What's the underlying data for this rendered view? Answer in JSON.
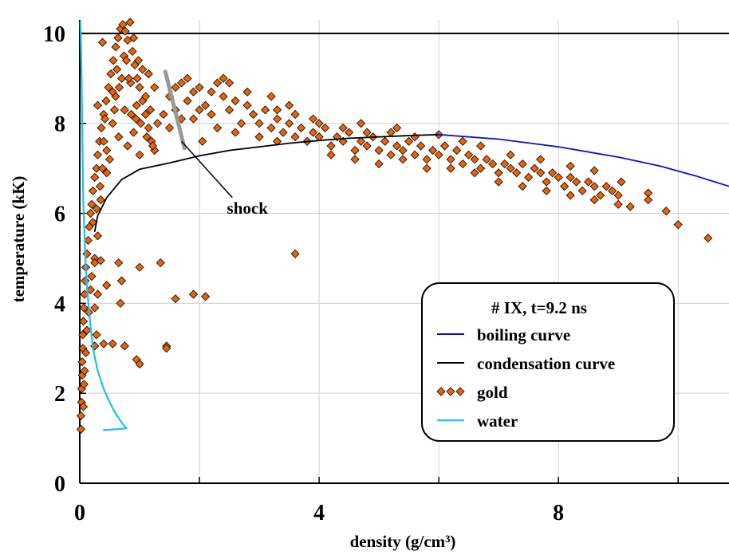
{
  "chart_data": {
    "type": "scatter",
    "title": "",
    "xlabel": "density (g/cm³)",
    "ylabel": "temperature (kK)",
    "xlim": [
      0,
      10.85
    ],
    "ylim": [
      0,
      10.3
    ],
    "x_ticks": [
      "0",
      "4",
      "8"
    ],
    "y_ticks": [
      "0",
      "2",
      "4",
      "6",
      "8",
      "10"
    ],
    "x_tick_values": [
      0,
      4,
      8
    ],
    "y_tick_values": [
      0,
      2,
      4,
      6,
      8,
      10
    ],
    "x_gridlines": [
      2,
      4,
      6,
      8,
      10
    ],
    "y_gridlines": [
      2,
      4,
      6,
      8,
      10
    ],
    "grid": true,
    "legend": {
      "title": "# IX, t=9.2 ns",
      "position": "lower-right",
      "entries": [
        "boiling curve",
        "condensation curve",
        "gold",
        "water"
      ]
    },
    "annotations": [
      {
        "text": "shock",
        "x": 2.5,
        "y": 6.1
      }
    ],
    "series": [
      {
        "name": "boiling curve",
        "kind": "line",
        "color": "#1010c0",
        "points": [
          [
            6.0,
            7.75
          ],
          [
            7.0,
            7.65
          ],
          [
            8.0,
            7.48
          ],
          [
            9.0,
            7.25
          ],
          [
            9.7,
            7.05
          ],
          [
            10.3,
            6.83
          ],
          [
            10.85,
            6.6
          ]
        ]
      },
      {
        "name": "condensation curve",
        "kind": "line",
        "color": "#000000",
        "points": [
          [
            0.25,
            5.6
          ],
          [
            0.3,
            5.95
          ],
          [
            0.45,
            6.35
          ],
          [
            0.7,
            6.75
          ],
          [
            1.0,
            6.98
          ],
          [
            1.5,
            7.12
          ],
          [
            2.0,
            7.28
          ],
          [
            2.5,
            7.4
          ],
          [
            3.0,
            7.48
          ],
          [
            3.5,
            7.56
          ],
          [
            4.0,
            7.62
          ],
          [
            4.5,
            7.67
          ],
          [
            5.0,
            7.7
          ],
          [
            5.5,
            7.73
          ],
          [
            6.0,
            7.75
          ]
        ]
      },
      {
        "name": "gold",
        "kind": "scatter",
        "color": "#e8640a",
        "edge_color": "#000000",
        "marker": "diamond",
        "points": [
          [
            0.02,
            1.2
          ],
          [
            0.02,
            1.5
          ],
          [
            0.03,
            1.8
          ],
          [
            0.03,
            2.1
          ],
          [
            0.04,
            2.4
          ],
          [
            0.04,
            2.7
          ],
          [
            0.05,
            3.0
          ],
          [
            0.05,
            3.3
          ],
          [
            0.06,
            3.6
          ],
          [
            0.07,
            3.9
          ],
          [
            0.08,
            4.2
          ],
          [
            0.09,
            4.5
          ],
          [
            0.1,
            4.8
          ],
          [
            0.12,
            5.1
          ],
          [
            0.14,
            5.4
          ],
          [
            0.16,
            5.7
          ],
          [
            0.18,
            6.0
          ],
          [
            0.2,
            6.2
          ],
          [
            0.22,
            6.5
          ],
          [
            0.25,
            6.8
          ],
          [
            0.28,
            7.0
          ],
          [
            0.3,
            7.3
          ],
          [
            0.33,
            7.6
          ],
          [
            0.36,
            7.9
          ],
          [
            0.4,
            8.2
          ],
          [
            0.44,
            8.5
          ],
          [
            0.48,
            8.8
          ],
          [
            0.52,
            9.1
          ],
          [
            0.56,
            9.4
          ],
          [
            0.6,
            9.7
          ],
          [
            0.64,
            9.9
          ],
          [
            0.68,
            10.1
          ],
          [
            0.72,
            10.2
          ],
          [
            0.76,
            10.05
          ],
          [
            0.8,
            9.85
          ],
          [
            0.84,
            10.25
          ],
          [
            0.88,
            9.6
          ],
          [
            0.92,
            9.3
          ],
          [
            0.96,
            9.0
          ],
          [
            1.0,
            8.8
          ],
          [
            1.05,
            8.5
          ],
          [
            1.1,
            8.2
          ],
          [
            1.15,
            7.9
          ],
          [
            1.2,
            7.6
          ],
          [
            1.25,
            7.4
          ],
          [
            0.5,
            7.2
          ],
          [
            0.55,
            8.0
          ],
          [
            0.6,
            8.6
          ],
          [
            0.65,
            7.7
          ],
          [
            0.7,
            9.0
          ],
          [
            0.75,
            8.3
          ],
          [
            0.8,
            7.5
          ],
          [
            0.85,
            8.9
          ],
          [
            0.9,
            7.8
          ],
          [
            0.95,
            8.4
          ],
          [
            1.0,
            7.3
          ],
          [
            1.05,
            9.2
          ],
          [
            1.1,
            8.6
          ],
          [
            0.45,
            6.9
          ],
          [
            0.35,
            6.3
          ],
          [
            0.3,
            5.5
          ],
          [
            0.25,
            5.0
          ],
          [
            0.2,
            4.6
          ],
          [
            0.18,
            4.3
          ],
          [
            0.15,
            3.8
          ],
          [
            0.12,
            3.4
          ],
          [
            0.1,
            2.9
          ],
          [
            0.08,
            2.5
          ],
          [
            0.07,
            2.2
          ],
          [
            0.06,
            1.7
          ],
          [
            0.4,
            7.6
          ],
          [
            0.42,
            8.1
          ],
          [
            0.58,
            8.3
          ],
          [
            0.62,
            9.2
          ],
          [
            0.66,
            8.8
          ],
          [
            0.74,
            9.5
          ],
          [
            0.78,
            9.4
          ],
          [
            0.82,
            9.0
          ],
          [
            0.86,
            8.2
          ],
          [
            0.94,
            8.1
          ],
          [
            1.02,
            8.0
          ],
          [
            1.12,
            7.7
          ],
          [
            1.18,
            8.3
          ],
          [
            1.22,
            7.5
          ],
          [
            0.38,
            7.0
          ],
          [
            0.34,
            6.6
          ],
          [
            0.28,
            6.1
          ],
          [
            0.22,
            5.8
          ],
          [
            0.38,
            9.8
          ],
          [
            0.3,
            8.4
          ],
          [
            0.45,
            7.4
          ],
          [
            0.55,
            8.7
          ],
          [
            0.9,
            9.9
          ],
          [
            0.98,
            9.4
          ],
          [
            1.15,
            9.1
          ],
          [
            1.25,
            8.8
          ],
          [
            0.25,
            4.9
          ],
          [
            0.35,
            4.95
          ],
          [
            0.45,
            4.4
          ],
          [
            0.65,
            4.9
          ],
          [
            0.3,
            4.2
          ],
          [
            0.7,
            4.5
          ],
          [
            0.68,
            4.0
          ],
          [
            1.0,
            4.8
          ],
          [
            1.35,
            4.9
          ],
          [
            0.25,
            3.9
          ],
          [
            0.28,
            3.3
          ],
          [
            0.25,
            3.05
          ],
          [
            0.4,
            3.1
          ],
          [
            0.55,
            3.1
          ],
          [
            0.75,
            3.05
          ],
          [
            0.95,
            2.75
          ],
          [
            1.0,
            2.65
          ],
          [
            1.45,
            3.05
          ],
          [
            1.45,
            3.0
          ],
          [
            1.6,
            4.1
          ],
          [
            1.9,
            4.2
          ],
          [
            2.1,
            4.15
          ],
          [
            3.6,
            5.1
          ],
          [
            1.3,
            8.0
          ],
          [
            1.4,
            8.2
          ],
          [
            1.5,
            8.6
          ],
          [
            1.6,
            8.3
          ],
          [
            1.7,
            8.9
          ],
          [
            1.8,
            8.5
          ],
          [
            1.9,
            8.1
          ],
          [
            2.0,
            8.8
          ],
          [
            2.1,
            8.4
          ],
          [
            2.2,
            8.2
          ],
          [
            2.3,
            8.9
          ],
          [
            2.4,
            8.6
          ],
          [
            2.5,
            8.3
          ],
          [
            2.6,
            8.5
          ],
          [
            2.7,
            8.0
          ],
          [
            2.8,
            8.4
          ],
          [
            2.9,
            8.2
          ],
          [
            3.0,
            8.0
          ],
          [
            3.1,
            8.3
          ],
          [
            3.2,
            7.9
          ],
          [
            3.3,
            8.1
          ],
          [
            3.4,
            7.8
          ],
          [
            3.5,
            8.0
          ],
          [
            3.6,
            7.7
          ],
          [
            3.7,
            7.9
          ],
          [
            3.8,
            7.6
          ],
          [
            3.9,
            7.8
          ],
          [
            4.0,
            7.7
          ],
          [
            4.1,
            7.9
          ],
          [
            4.2,
            7.5
          ],
          [
            4.3,
            7.7
          ],
          [
            4.4,
            7.6
          ],
          [
            4.5,
            7.8
          ],
          [
            4.6,
            7.4
          ],
          [
            4.7,
            7.6
          ],
          [
            4.8,
            7.5
          ],
          [
            4.9,
            7.7
          ],
          [
            5.0,
            7.4
          ],
          [
            5.1,
            7.6
          ],
          [
            5.2,
            7.3
          ],
          [
            5.3,
            7.5
          ],
          [
            5.4,
            7.4
          ],
          [
            5.5,
            7.6
          ],
          [
            5.6,
            7.3
          ],
          [
            5.7,
            7.5
          ],
          [
            5.8,
            7.2
          ],
          [
            5.9,
            7.4
          ],
          [
            6.0,
            7.3
          ],
          [
            6.1,
            7.5
          ],
          [
            6.2,
            7.2
          ],
          [
            6.3,
            7.4
          ],
          [
            6.4,
            7.1
          ],
          [
            6.5,
            7.3
          ],
          [
            6.6,
            7.2
          ],
          [
            6.7,
            7.0
          ],
          [
            6.8,
            7.2
          ],
          [
            6.9,
            7.1
          ],
          [
            7.0,
            6.9
          ],
          [
            7.1,
            7.1
          ],
          [
            7.2,
            7.0
          ],
          [
            7.3,
            6.9
          ],
          [
            7.4,
            7.1
          ],
          [
            7.5,
            6.8
          ],
          [
            7.6,
            7.0
          ],
          [
            7.7,
            6.9
          ],
          [
            7.8,
            6.7
          ],
          [
            7.9,
            6.9
          ],
          [
            8.0,
            6.8
          ],
          [
            8.1,
            6.6
          ],
          [
            8.2,
            6.8
          ],
          [
            8.3,
            6.7
          ],
          [
            8.4,
            6.5
          ],
          [
            8.5,
            6.7
          ],
          [
            8.6,
            6.6
          ],
          [
            8.7,
            6.4
          ],
          [
            8.8,
            6.6
          ],
          [
            8.9,
            6.5
          ],
          [
            9.0,
            6.4
          ],
          [
            1.5,
            7.9
          ],
          [
            1.7,
            8.1
          ],
          [
            1.9,
            8.7
          ],
          [
            2.2,
            8.7
          ],
          [
            2.5,
            8.9
          ],
          [
            2.8,
            8.7
          ],
          [
            3.2,
            8.6
          ],
          [
            3.5,
            8.4
          ],
          [
            2.6,
            7.8
          ],
          [
            2.3,
            7.9
          ],
          [
            2.05,
            7.6
          ],
          [
            3.0,
            7.7
          ],
          [
            3.3,
            7.6
          ],
          [
            3.6,
            8.2
          ],
          [
            4.0,
            8.0
          ],
          [
            4.4,
            7.9
          ],
          [
            4.8,
            7.8
          ],
          [
            5.2,
            7.8
          ],
          [
            5.6,
            7.7
          ],
          [
            4.2,
            7.3
          ],
          [
            4.6,
            7.2
          ],
          [
            5.0,
            7.1
          ],
          [
            5.4,
            7.2
          ],
          [
            5.8,
            7.0
          ],
          [
            6.2,
            7.0
          ],
          [
            6.6,
            6.9
          ],
          [
            7.0,
            6.7
          ],
          [
            7.4,
            6.6
          ],
          [
            7.8,
            6.5
          ],
          [
            8.2,
            6.4
          ],
          [
            8.6,
            6.3
          ],
          [
            9.0,
            6.2
          ],
          [
            9.2,
            6.15
          ],
          [
            9.5,
            6.45
          ],
          [
            9.5,
            6.3
          ],
          [
            9.8,
            6.05
          ],
          [
            10.0,
            5.75
          ],
          [
            10.5,
            5.45
          ],
          [
            6.0,
            7.75
          ],
          [
            6.7,
            7.5
          ],
          [
            7.2,
            7.3
          ],
          [
            7.7,
            7.2
          ],
          [
            8.2,
            7.05
          ],
          [
            8.6,
            6.95
          ],
          [
            9.05,
            6.7
          ],
          [
            6.4,
            7.6
          ],
          [
            5.3,
            7.9
          ],
          [
            4.7,
            8.0
          ],
          [
            2.0,
            8.3
          ],
          [
            1.6,
            8.8
          ],
          [
            1.8,
            9.0
          ],
          [
            2.4,
            9.0
          ],
          [
            3.3,
            8.3
          ],
          [
            3.9,
            8.1
          ]
        ]
      },
      {
        "name": "water",
        "kind": "line",
        "color": "#1ec0e8",
        "points": [
          [
            0.01,
            10.25
          ],
          [
            0.02,
            9.8
          ],
          [
            0.03,
            9.0
          ],
          [
            0.04,
            8.0
          ],
          [
            0.05,
            7.0
          ],
          [
            0.06,
            6.2
          ],
          [
            0.08,
            5.5
          ],
          [
            0.1,
            4.8
          ],
          [
            0.13,
            4.2
          ],
          [
            0.17,
            3.6
          ],
          [
            0.22,
            3.0
          ],
          [
            0.3,
            2.5
          ],
          [
            0.4,
            2.1
          ],
          [
            0.5,
            1.8
          ],
          [
            0.6,
            1.55
          ],
          [
            0.7,
            1.35
          ],
          [
            0.78,
            1.22
          ],
          [
            0.6,
            1.2
          ],
          [
            0.4,
            1.18
          ]
        ]
      },
      {
        "name": "shock",
        "kind": "line",
        "color": "#999999",
        "points": [
          [
            1.43,
            9.15
          ],
          [
            1.75,
            7.45
          ]
        ]
      }
    ]
  }
}
